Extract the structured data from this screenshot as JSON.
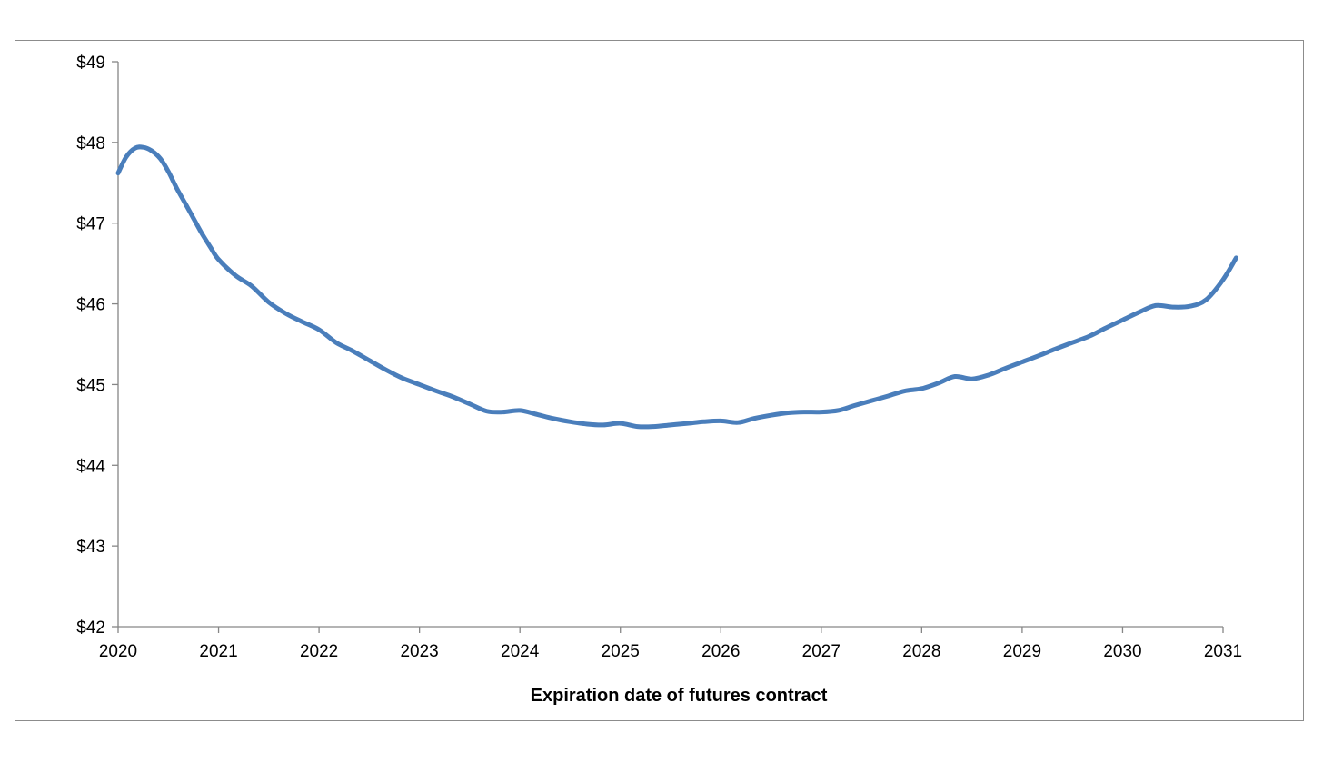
{
  "chart_data": {
    "type": "line",
    "title": "",
    "xlabel": "Expiration date of futures contract",
    "ylabel": "",
    "xlim": [
      2020,
      2031
    ],
    "ylim": [
      42,
      49
    ],
    "grid": false,
    "legend": "none",
    "x_ticks": [
      "2020",
      "2021",
      "2022",
      "2023",
      "2024",
      "2025",
      "2026",
      "2027",
      "2028",
      "2029",
      "2030",
      "2031"
    ],
    "y_ticks": [
      "$42",
      "$43",
      "$44",
      "$45",
      "$46",
      "$47",
      "$48",
      "$49"
    ],
    "series": [
      {
        "color": "#4a7ebb",
        "x": [
          2020.0,
          2020.08,
          2020.17,
          2020.25,
          2020.33,
          2020.42,
          2020.5,
          2020.58,
          2020.67,
          2020.75,
          2020.83,
          2020.92,
          2021.0,
          2021.17,
          2021.33,
          2021.5,
          2021.67,
          2021.83,
          2022.0,
          2022.17,
          2022.33,
          2022.5,
          2022.67,
          2022.83,
          2023.0,
          2023.17,
          2023.33,
          2023.5,
          2023.67,
          2023.83,
          2024.0,
          2024.17,
          2024.33,
          2024.5,
          2024.67,
          2024.83,
          2025.0,
          2025.17,
          2025.33,
          2025.5,
          2025.67,
          2025.83,
          2026.0,
          2026.17,
          2026.33,
          2026.5,
          2026.67,
          2026.83,
          2027.0,
          2027.17,
          2027.33,
          2027.5,
          2027.67,
          2027.83,
          2028.0,
          2028.17,
          2028.33,
          2028.5,
          2028.67,
          2028.83,
          2029.0,
          2029.17,
          2029.33,
          2029.5,
          2029.67,
          2029.83,
          2030.0,
          2030.17,
          2030.33,
          2030.5,
          2030.67,
          2030.83,
          2031.0,
          2031.13
        ],
        "values": [
          47.62,
          47.82,
          47.93,
          47.94,
          47.9,
          47.8,
          47.64,
          47.44,
          47.24,
          47.06,
          46.88,
          46.7,
          46.55,
          46.35,
          46.22,
          46.02,
          45.88,
          45.78,
          45.68,
          45.52,
          45.42,
          45.3,
          45.18,
          45.08,
          45.0,
          44.92,
          44.85,
          44.76,
          44.67,
          44.66,
          44.68,
          44.63,
          44.58,
          44.54,
          44.51,
          44.5,
          44.52,
          44.48,
          44.48,
          44.5,
          44.52,
          44.54,
          44.55,
          44.53,
          44.58,
          44.62,
          44.65,
          44.66,
          44.66,
          44.68,
          44.74,
          44.8,
          44.86,
          44.92,
          44.95,
          45.02,
          45.1,
          45.07,
          45.12,
          45.2,
          45.28,
          45.36,
          45.44,
          45.52,
          45.6,
          45.7,
          45.8,
          45.9,
          45.98,
          45.96,
          45.97,
          46.05,
          46.3,
          46.57
        ]
      }
    ]
  }
}
